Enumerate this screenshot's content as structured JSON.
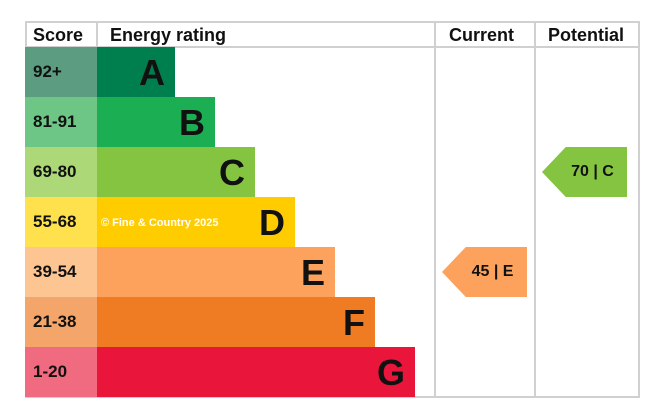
{
  "chart_data": {
    "type": "table",
    "headers": {
      "score": "Score",
      "rating": "Energy rating",
      "current": "Current",
      "potential": "Potential"
    },
    "bands": [
      {
        "letter": "A",
        "range": "92+",
        "color": "#007f4e",
        "score_color": "#5c9c80"
      },
      {
        "letter": "B",
        "range": "81-91",
        "color": "#1bae52",
        "score_color": "#6dc686"
      },
      {
        "letter": "C",
        "range": "69-80",
        "color": "#85c440",
        "score_color": "#acd878"
      },
      {
        "letter": "D",
        "range": "55-68",
        "color": "#ffcc00",
        "score_color": "#ffe04d"
      },
      {
        "letter": "E",
        "range": "39-54",
        "color": "#fca25c",
        "score_color": "#fdc592"
      },
      {
        "letter": "F",
        "range": "21-38",
        "color": "#ef7b22",
        "score_color": "#f4a66a"
      },
      {
        "letter": "G",
        "range": "1-20",
        "color": "#e9153b",
        "score_color": "#f06a80"
      }
    ],
    "current": {
      "value": 45,
      "band": "E",
      "label": "45 | E",
      "color": "#fca25c"
    },
    "potential": {
      "value": 70,
      "band": "C",
      "label": "70 | C",
      "color": "#85c440"
    },
    "watermark": "© Fine & Country 2025"
  }
}
